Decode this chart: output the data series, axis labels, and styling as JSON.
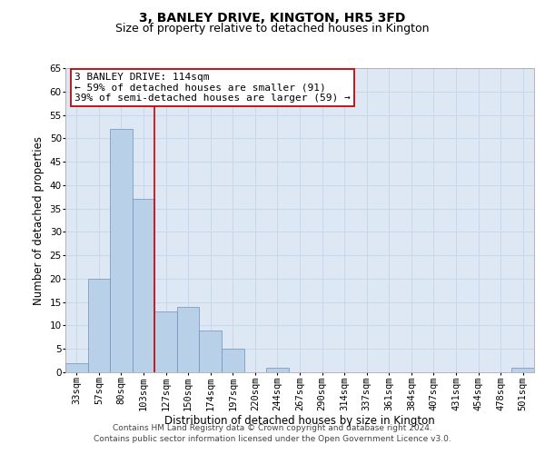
{
  "title_line1": "3, BANLEY DRIVE, KINGTON, HR5 3FD",
  "title_line2": "Size of property relative to detached houses in Kington",
  "xlabel": "Distribution of detached houses by size in Kington",
  "ylabel": "Number of detached properties",
  "categories": [
    "33sqm",
    "57sqm",
    "80sqm",
    "103sqm",
    "127sqm",
    "150sqm",
    "174sqm",
    "197sqm",
    "220sqm",
    "244sqm",
    "267sqm",
    "290sqm",
    "314sqm",
    "337sqm",
    "361sqm",
    "384sqm",
    "407sqm",
    "431sqm",
    "454sqm",
    "478sqm",
    "501sqm"
  ],
  "values": [
    2,
    20,
    52,
    37,
    13,
    14,
    9,
    5,
    0,
    1,
    0,
    0,
    0,
    0,
    0,
    0,
    0,
    0,
    0,
    0,
    1
  ],
  "bar_color": "#b8d0e8",
  "bar_edge_color": "#7090b8",
  "red_line_x": 3.5,
  "annotation_text": "3 BANLEY DRIVE: 114sqm\n← 59% of detached houses are smaller (91)\n39% of semi-detached houses are larger (59) →",
  "annotation_box_color": "#ffffff",
  "annotation_box_edge": "#cc0000",
  "ylim": [
    0,
    65
  ],
  "yticks": [
    0,
    5,
    10,
    15,
    20,
    25,
    30,
    35,
    40,
    45,
    50,
    55,
    60,
    65
  ],
  "grid_color": "#c8d8ec",
  "background_color": "#dde8f4",
  "footnote": "Contains HM Land Registry data © Crown copyright and database right 2024.\nContains public sector information licensed under the Open Government Licence v3.0.",
  "title_fontsize": 10,
  "subtitle_fontsize": 9,
  "axis_label_fontsize": 8.5,
  "tick_fontsize": 7.5,
  "annot_fontsize": 8,
  "footnote_fontsize": 6.5
}
